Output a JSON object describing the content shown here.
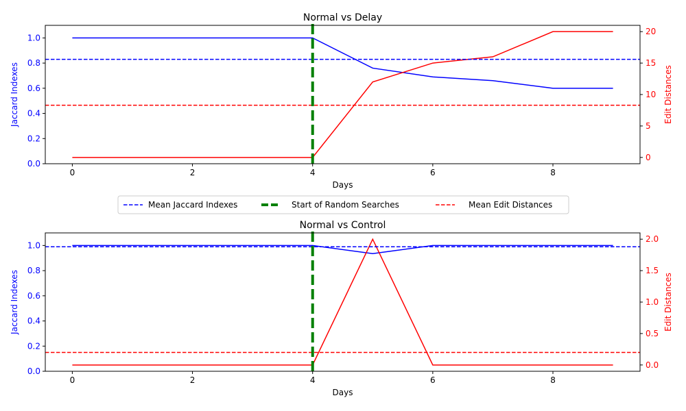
{
  "colors": {
    "jaccard": "#0000ff",
    "edit": "#ff0000",
    "start": "#008000",
    "axis": "#000000"
  },
  "legend": {
    "placement": "between-panels",
    "entries": [
      {
        "label": "Mean Jaccard Indexes",
        "style": "dashed",
        "color": "#0000ff"
      },
      {
        "label": "Start of Random Searches",
        "style": "thick-dashed",
        "color": "#008000"
      },
      {
        "label": "Mean Edit Distances",
        "style": "dashed",
        "color": "#ff0000"
      }
    ]
  },
  "chart_data": [
    {
      "type": "line",
      "title": "Normal vs Delay",
      "xlabel": "Days",
      "ylabel_left": "Jaccard Indexes",
      "ylabel_right": "Edit Distances",
      "x": [
        0,
        1,
        2,
        3,
        4,
        5,
        6,
        7,
        8,
        9
      ],
      "xticks": [
        0,
        2,
        4,
        6,
        8
      ],
      "xlim": [
        -0.45,
        9.45
      ],
      "ylim_left": [
        0,
        1.1
      ],
      "yticks_left": [
        0.0,
        0.2,
        0.4,
        0.6,
        0.8,
        1.0
      ],
      "ytick_labels_left": [
        "0.0",
        "0.2",
        "0.4",
        "0.6",
        "0.8",
        "1.0"
      ],
      "ylim_right": [
        -1.0,
        21.0
      ],
      "yticks_right": [
        0,
        5,
        10,
        15,
        20
      ],
      "ytick_labels_right": [
        "0",
        "5",
        "10",
        "15",
        "20"
      ],
      "jaccard": [
        1.0,
        1.0,
        1.0,
        1.0,
        1.0,
        0.76,
        0.69,
        0.66,
        0.6,
        0.6
      ],
      "edit": [
        0,
        0,
        0,
        0,
        0,
        12,
        15,
        16,
        20,
        20
      ],
      "mean_jaccard": 0.83,
      "mean_edit": 8.3,
      "start_day": 4
    },
    {
      "type": "line",
      "title": "Normal vs Control",
      "xlabel": "Days",
      "ylabel_left": "Jaccard Indexes",
      "ylabel_right": "Edit Distances",
      "x": [
        0,
        1,
        2,
        3,
        4,
        5,
        6,
        7,
        8,
        9
      ],
      "xticks": [
        0,
        2,
        4,
        6,
        8
      ],
      "xlim": [
        -0.45,
        9.45
      ],
      "ylim_left": [
        0,
        1.1
      ],
      "yticks_left": [
        0.0,
        0.2,
        0.4,
        0.6,
        0.8,
        1.0
      ],
      "ytick_labels_left": [
        "0.0",
        "0.2",
        "0.4",
        "0.6",
        "0.8",
        "1.0"
      ],
      "ylim_right": [
        -0.1,
        2.1
      ],
      "yticks_right": [
        0.0,
        0.5,
        1.0,
        1.5,
        2.0
      ],
      "ytick_labels_right": [
        "0.0",
        "0.5",
        "1.0",
        "1.5",
        "2.0"
      ],
      "jaccard": [
        1.0,
        1.0,
        1.0,
        1.0,
        1.0,
        0.935,
        1.0,
        1.0,
        1.0,
        1.0
      ],
      "edit": [
        0,
        0,
        0,
        0,
        0,
        2,
        0,
        0,
        0,
        0
      ],
      "mean_jaccard": 0.99,
      "mean_edit": 0.2,
      "start_day": 4
    }
  ]
}
